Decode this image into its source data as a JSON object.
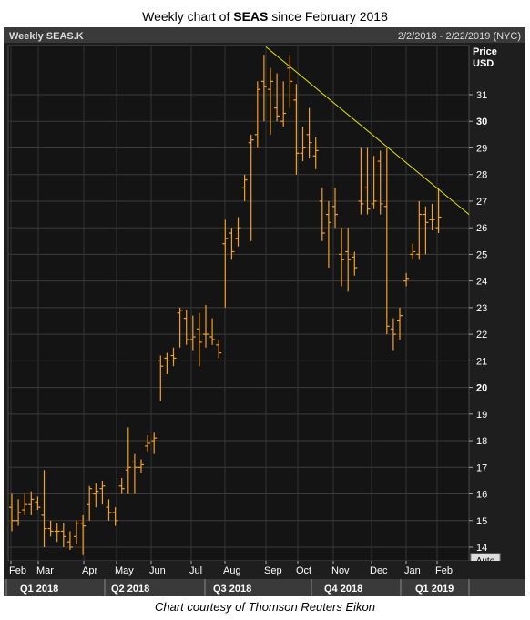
{
  "title": {
    "prefix": "Weekly chart of ",
    "ticker": "SEAS",
    "suffix": " since February 2018"
  },
  "credit": "Chart courtesy of Thomson Reuters Eikon",
  "chart_data": {
    "type": "ohlc-bar",
    "header_left": "Weekly SEAS.K",
    "header_right": "2/2/2018 - 2/22/2019 (NYC)",
    "y_axis": {
      "label_line1": "Price",
      "label_line2": "USD",
      "range": [
        13.5,
        32.8
      ],
      "ticks": [
        14,
        15,
        16,
        17,
        18,
        19,
        20,
        21,
        22,
        23,
        24,
        25,
        26,
        27,
        28,
        29,
        30,
        31
      ],
      "bold_ticks": [
        20,
        30
      ],
      "button": "Auto"
    },
    "x_axis": {
      "months": [
        "Feb",
        "Mar",
        "Apr",
        "May",
        "Jun",
        "Jul",
        "Aug",
        "Sep",
        "Oct",
        "Nov",
        "Dec",
        "Jan",
        "Feb"
      ],
      "quarters": [
        "Q1 2018",
        "Q2 2018",
        "Q3 2018",
        "Q4 2018",
        "Q1 2019"
      ]
    },
    "bar_color": "#f4a020",
    "trendline_color": "#e6e600",
    "trendline": {
      "start": {
        "week": 0,
        "value": 32.8
      },
      "end": {
        "week": 55,
        "value": 26.5
      },
      "note": "from Sep 2018 high to Feb 2019"
    },
    "weeks_ohlc": [
      [
        15.5,
        16.0,
        14.6,
        15.0
      ],
      [
        15.0,
        15.8,
        14.8,
        15.3
      ],
      [
        15.4,
        16.0,
        15.2,
        15.6
      ],
      [
        15.6,
        16.1,
        15.2,
        15.8
      ],
      [
        15.7,
        15.9,
        15.4,
        15.5
      ],
      [
        15.2,
        16.9,
        14.0,
        14.7
      ],
      [
        14.7,
        15.0,
        14.4,
        14.6
      ],
      [
        14.6,
        14.9,
        14.2,
        14.6
      ],
      [
        14.6,
        14.9,
        14.0,
        14.4
      ],
      [
        14.2,
        14.6,
        13.9,
        14.0
      ],
      [
        14.4,
        15.0,
        14.1,
        14.9
      ],
      [
        14.9,
        15.2,
        13.7,
        14.8
      ],
      [
        15.6,
        16.3,
        15.0,
        16.2
      ],
      [
        16.0,
        16.4,
        15.5,
        16.1
      ],
      [
        16.2,
        16.5,
        15.6,
        16.3
      ],
      [
        15.5,
        15.8,
        15.0,
        15.3
      ],
      [
        15.3,
        15.5,
        14.8,
        15.0
      ],
      [
        16.3,
        16.6,
        16.0,
        16.2
      ],
      [
        16.9,
        18.5,
        16.0,
        17.0
      ],
      [
        17.2,
        17.5,
        16.0,
        17.0
      ],
      [
        17.0,
        17.3,
        16.8,
        17.1
      ],
      [
        17.8,
        18.2,
        17.6,
        17.9
      ],
      [
        18.0,
        18.3,
        17.5,
        18.1
      ],
      [
        21.0,
        21.2,
        19.5,
        20.8
      ],
      [
        21.1,
        21.3,
        20.5,
        21.0
      ],
      [
        21.2,
        21.5,
        20.8,
        21.1
      ],
      [
        22.8,
        23.0,
        21.5,
        22.9
      ],
      [
        22.6,
        22.9,
        21.6,
        21.8
      ],
      [
        21.8,
        22.7,
        21.4,
        21.9
      ],
      [
        22.2,
        22.8,
        20.8,
        21.7
      ],
      [
        22.0,
        23.1,
        21.5,
        22.0
      ],
      [
        21.9,
        22.6,
        21.6,
        21.8
      ],
      [
        21.6,
        21.8,
        21.1,
        21.3
      ],
      [
        25.4,
        26.3,
        23.0,
        25.6
      ],
      [
        25.8,
        26.0,
        24.8,
        25.1
      ],
      [
        25.6,
        26.4,
        25.3,
        26.0
      ],
      [
        27.5,
        28.0,
        27.0,
        27.8
      ],
      [
        29.2,
        29.5,
        25.5,
        29.3
      ],
      [
        29.5,
        31.5,
        29.0,
        31.2
      ],
      [
        31.5,
        32.5,
        30.0,
        31.3
      ],
      [
        31.2,
        32.0,
        29.5,
        31.5
      ],
      [
        30.5,
        31.8,
        30.0,
        30.2
      ],
      [
        30.0,
        31.5,
        29.8,
        30.3
      ],
      [
        32.0,
        32.5,
        30.5,
        31.5
      ],
      [
        30.8,
        31.4,
        28.0,
        28.8
      ],
      [
        28.8,
        29.8,
        28.5,
        29.0
      ],
      [
        29.5,
        30.5,
        28.6,
        29.2
      ],
      [
        28.7,
        29.4,
        28.2,
        28.9
      ],
      [
        27.0,
        27.5,
        25.5,
        25.8
      ],
      [
        26.5,
        27.0,
        24.5,
        26.2
      ],
      [
        26.8,
        27.5,
        26.0,
        26.5
      ],
      [
        25.0,
        26.0,
        23.8,
        24.8
      ],
      [
        25.1,
        26.0,
        23.6,
        24.8
      ],
      [
        24.9,
        25.1,
        24.2,
        24.5
      ],
      [
        27.0,
        29.0,
        26.5,
        26.9
      ],
      [
        27.5,
        29.0,
        26.5,
        26.7
      ],
      [
        26.9,
        28.7,
        26.7,
        27.0
      ],
      [
        28.5,
        28.9,
        26.5,
        26.9
      ],
      [
        26.8,
        29.0,
        22.0,
        22.3
      ],
      [
        22.2,
        22.6,
        21.4,
        22.0
      ],
      [
        22.5,
        23.0,
        21.8,
        22.7
      ],
      [
        24.0,
        24.3,
        23.8,
        24.1
      ],
      [
        25.0,
        25.4,
        24.8,
        25.1
      ],
      [
        25.0,
        27.0,
        24.8,
        26.5
      ],
      [
        26.5,
        26.8,
        25.0,
        26.2
      ],
      [
        26.3,
        26.9,
        25.9,
        26.3
      ],
      [
        26.0,
        27.5,
        25.8,
        26.4
      ]
    ]
  }
}
